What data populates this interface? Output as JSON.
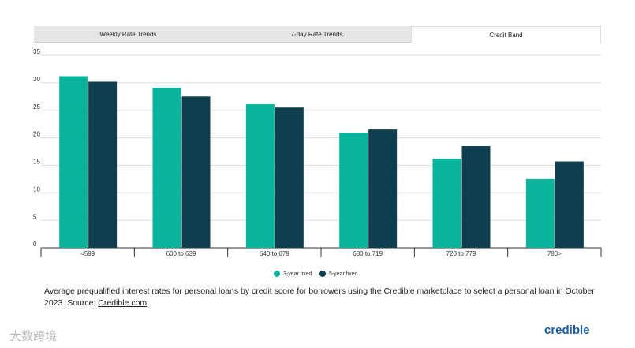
{
  "tabs": [
    "Weekly Rate Trends",
    "7-day Rate Trends",
    "Credit Band"
  ],
  "chart_data": {
    "type": "bar",
    "categories": [
      "<599",
      "600 to 639",
      "640 to 679",
      "680 to 719",
      "720 to 779",
      "780>"
    ],
    "series": [
      {
        "name": "3-year fixed",
        "color": "#0ab39c",
        "values": [
          31.2,
          29.1,
          26.1,
          20.9,
          16.2,
          12.5
        ]
      },
      {
        "name": "5-year fixed",
        "color": "#0e3f4f",
        "values": [
          30.2,
          27.5,
          25.5,
          21.5,
          18.5,
          15.7
        ]
      }
    ],
    "ylim": [
      0,
      35
    ],
    "yticks": [
      0,
      5,
      10,
      15,
      20,
      25,
      30,
      35
    ],
    "grid": true
  },
  "caption": {
    "text": "Average prequalified interest rates for personal loans by credit score for borrowers using the Credible marketplace to select a personal loan in October 2023. Source: ",
    "link": "Credible.com",
    "end": "."
  },
  "logo": "credible",
  "watermark": "大数跨境"
}
